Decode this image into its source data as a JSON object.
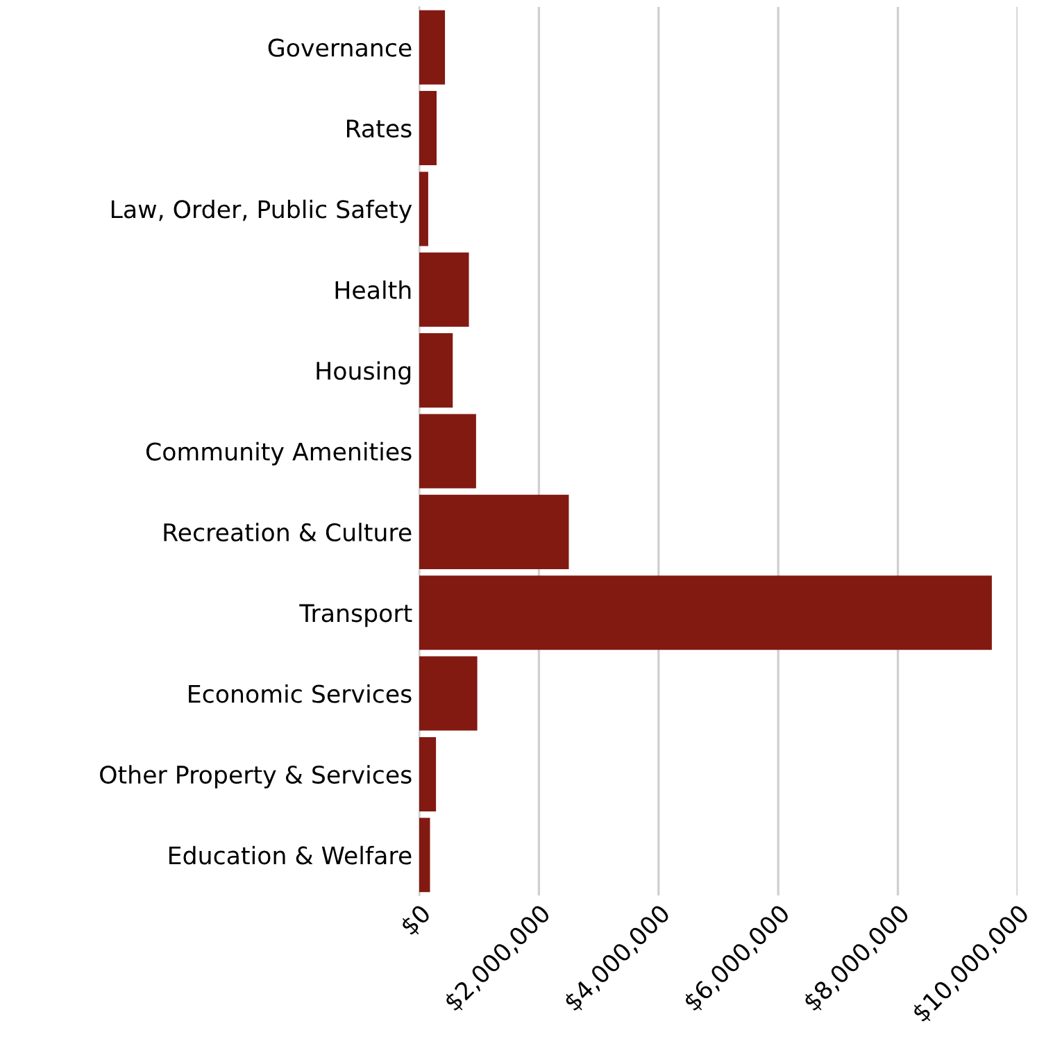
{
  "chart_data": {
    "type": "bar",
    "orientation": "horizontal",
    "categories": [
      "Governance",
      "Rates",
      "Law, Order, Public Safety",
      "Health",
      "Housing",
      "Community Amenities",
      "Recreation & Culture",
      "Transport",
      "Economic Services",
      "Other Property & Services",
      "Education & Welfare"
    ],
    "values": [
      430000,
      290000,
      150000,
      830000,
      560000,
      950000,
      2500000,
      9570000,
      970000,
      280000,
      180000
    ],
    "color": "#821a12",
    "xlim": [
      0,
      10000000
    ],
    "xticks": [
      {
        "value": 0,
        "label": "$0"
      },
      {
        "value": 2000000,
        "label": "$2,000,000"
      },
      {
        "value": 4000000,
        "label": "$4,000,000"
      },
      {
        "value": 6000000,
        "label": "$6,000,000"
      },
      {
        "value": 8000000,
        "label": "$8,000,000"
      },
      {
        "value": 10000000,
        "label": "$10,000,000"
      }
    ],
    "grid": "x"
  }
}
